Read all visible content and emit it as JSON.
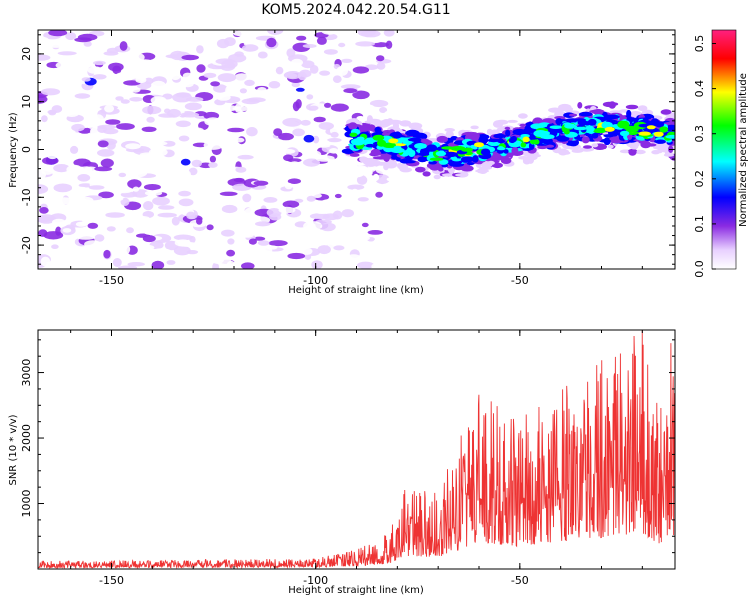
{
  "title": "KOM5.2024.042.20.54.G11",
  "chart_data": [
    {
      "type": "heatmap",
      "xlabel": "Height of straight line (km)",
      "ylabel": "Frequency (Hz)",
      "xlim": [
        -168,
        -12
      ],
      "ylim": [
        -25,
        25
      ],
      "x_ticks": [
        -150,
        -100,
        -50
      ],
      "y_ticks": [
        -20,
        -10,
        0,
        10,
        20
      ],
      "colorbar": {
        "label": "Normalized spectral amplitude",
        "range": [
          0,
          0.53
        ],
        "ticks": [
          "0.0",
          "0.1",
          "0.2",
          "0.3",
          "0.4",
          "0.5"
        ],
        "colors": [
          "#ffffff",
          "#e8d0ff",
          "#8a2be2",
          "#0000ff",
          "#00ffff",
          "#00ff00",
          "#ffff00",
          "#ff0000",
          "#ff2080"
        ]
      },
      "features": [
        {
          "label": "broadband background",
          "x_range": [
            -168,
            -90
          ],
          "y_range": [
            -25,
            25
          ],
          "amplitude": 0.08
        },
        {
          "label": "bright band",
          "path_x": [
            -92,
            -80,
            -70,
            -60,
            -50,
            -40,
            -30,
            -20,
            -12
          ],
          "path_y": [
            2,
            1,
            -1,
            0,
            2,
            4,
            5,
            4,
            3
          ],
          "halfwidth_hz": 3.5,
          "peak_amplitude": 0.52
        }
      ]
    },
    {
      "type": "line",
      "xlabel": "Height of straight line (km)",
      "ylabel": "SNR (10 * v/v)",
      "xlim": [
        -168,
        -12
      ],
      "ylim": [
        0,
        3650
      ],
      "x_ticks": [
        -150,
        -100,
        -50
      ],
      "y_ticks": [
        1000,
        2000,
        3000
      ],
      "color": "#ee3333",
      "envelope": [
        {
          "x": -168,
          "max": 120
        },
        {
          "x": -100,
          "max": 160
        },
        {
          "x": -90,
          "max": 300
        },
        {
          "x": -82,
          "max": 550
        },
        {
          "x": -78,
          "max": 1300
        },
        {
          "x": -70,
          "max": 1200
        },
        {
          "x": -60,
          "max": 2700
        },
        {
          "x": -50,
          "max": 2300
        },
        {
          "x": -40,
          "max": 2800
        },
        {
          "x": -30,
          "max": 3200
        },
        {
          "x": -20,
          "max": 3650
        },
        {
          "x": -16,
          "max": 2500
        },
        {
          "x": -12,
          "max": 3400
        }
      ],
      "peaks": [
        {
          "x": -20,
          "y": 3650
        },
        {
          "x": -13,
          "y": 3450
        },
        {
          "x": -12,
          "y": 2400
        }
      ]
    }
  ]
}
